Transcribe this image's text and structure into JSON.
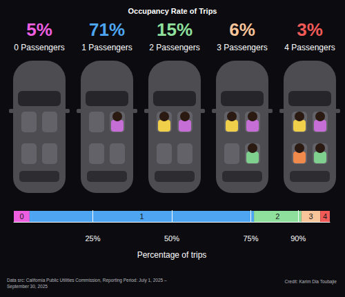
{
  "chart_data": {
    "type": "bar",
    "title": "Occupancy Rate of Trips",
    "orientation": "horizontal",
    "stacked": true,
    "categories": [
      "0 Passengers",
      "1 Passengers",
      "2 Passengers",
      "3 Passengers",
      "4 Passengers"
    ],
    "values": [
      5,
      71,
      15,
      6,
      3
    ],
    "value_labels": [
      "5%",
      "71%",
      "15%",
      "6%",
      "3%"
    ],
    "segment_labels": [
      "0",
      "1",
      "2",
      "3",
      "4"
    ],
    "colors": [
      "#ee5fe0",
      "#4ea6f2",
      "#8fe09c",
      "#f8c49a",
      "#f25a57"
    ],
    "xlabel": "Percentage of trips",
    "xlim": [
      0,
      100
    ],
    "xticks": [
      {
        "value": 25,
        "label": "25%"
      },
      {
        "value": 50,
        "label": "50%"
      },
      {
        "value": 75,
        "label": "75%"
      },
      {
        "value": 90,
        "label": "90%"
      }
    ],
    "grid": true,
    "tick_labels": "x",
    "source": [
      "Data src: California Public Utilities Commission, Reporting Period: July 1, 2025 –",
      "September 30, 2025"
    ],
    "credit": "Credit: Karim Dia Toubajie"
  }
}
